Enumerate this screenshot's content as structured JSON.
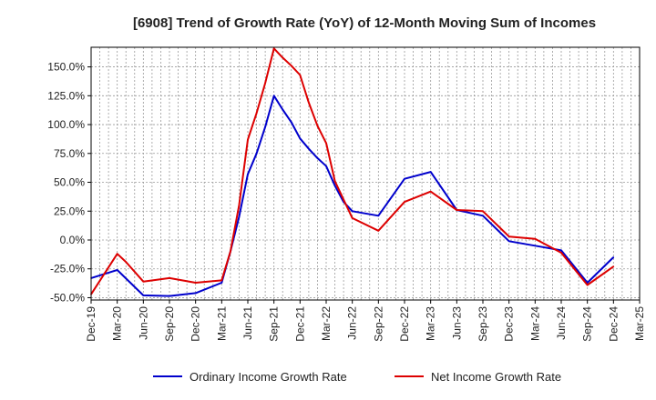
{
  "chart_data": {
    "type": "line",
    "title": "[6908]  Trend of Growth Rate (YoY) of 12-Month Moving Sum of Incomes",
    "xlabel": "",
    "ylabel": "",
    "x_labels": [
      "Dec-19",
      "Mar-20",
      "Jun-20",
      "Sep-20",
      "Dec-20",
      "Mar-21",
      "Jun-21",
      "Sep-21",
      "Dec-21",
      "Mar-22",
      "Jun-22",
      "Sep-22",
      "Dec-22",
      "Mar-23",
      "Jun-23",
      "Sep-23",
      "Dec-23",
      "Mar-24",
      "Jun-24",
      "Sep-24",
      "Dec-24",
      "Mar-25"
    ],
    "xlim": [
      0,
      63
    ],
    "ylim": [
      -52,
      167
    ],
    "y_ticks": [
      150,
      125,
      100,
      75,
      50,
      25,
      0,
      -25,
      -50
    ],
    "y_tick_labels": [
      "150.0%",
      "125.0%",
      "100.0%",
      "75.0%",
      "50.0%",
      "25.0%",
      "0.0%",
      "-25.0%",
      "-50.0%"
    ],
    "grid": true,
    "legend_position": "bottom",
    "series": [
      {
        "name": "Ordinary Income Growth Rate",
        "color": "#0000cc",
        "points": [
          [
            0,
            -33
          ],
          [
            3,
            -26
          ],
          [
            6,
            -48
          ],
          [
            9,
            -48.5
          ],
          [
            12,
            -46
          ],
          [
            15,
            -37
          ],
          [
            16,
            -10
          ],
          [
            17,
            20
          ],
          [
            18,
            57
          ],
          [
            19,
            75
          ],
          [
            20,
            98
          ],
          [
            21,
            125
          ],
          [
            22,
            113
          ],
          [
            23,
            102
          ],
          [
            24,
            88
          ],
          [
            25,
            79
          ],
          [
            26,
            71
          ],
          [
            27,
            64
          ],
          [
            28,
            47
          ],
          [
            29,
            33
          ],
          [
            30,
            25
          ],
          [
            33,
            21
          ],
          [
            36,
            53
          ],
          [
            39,
            59
          ],
          [
            42,
            26
          ],
          [
            45,
            21
          ],
          [
            48,
            -1
          ],
          [
            51,
            -5
          ],
          [
            54,
            -9
          ],
          [
            57,
            -37
          ],
          [
            60,
            -15
          ]
        ]
      },
      {
        "name": "Net Income Growth Rate",
        "color": "#dd0000",
        "points": [
          [
            0,
            -47
          ],
          [
            3,
            -12
          ],
          [
            4,
            -19
          ],
          [
            6,
            -36
          ],
          [
            9,
            -33
          ],
          [
            12,
            -37
          ],
          [
            15,
            -35
          ],
          [
            16,
            -10
          ],
          [
            17,
            30
          ],
          [
            18,
            87
          ],
          [
            19,
            110
          ],
          [
            20,
            136
          ],
          [
            21,
            166
          ],
          [
            22,
            158
          ],
          [
            23,
            151
          ],
          [
            24,
            143
          ],
          [
            25,
            119
          ],
          [
            26,
            99
          ],
          [
            27,
            84
          ],
          [
            28,
            51
          ],
          [
            29,
            35
          ],
          [
            30,
            19
          ],
          [
            33,
            8
          ],
          [
            36,
            33
          ],
          [
            39,
            42
          ],
          [
            42,
            26
          ],
          [
            45,
            25
          ],
          [
            48,
            3
          ],
          [
            51,
            1
          ],
          [
            54,
            -11
          ],
          [
            57,
            -39
          ],
          [
            60,
            -23
          ]
        ]
      }
    ]
  }
}
